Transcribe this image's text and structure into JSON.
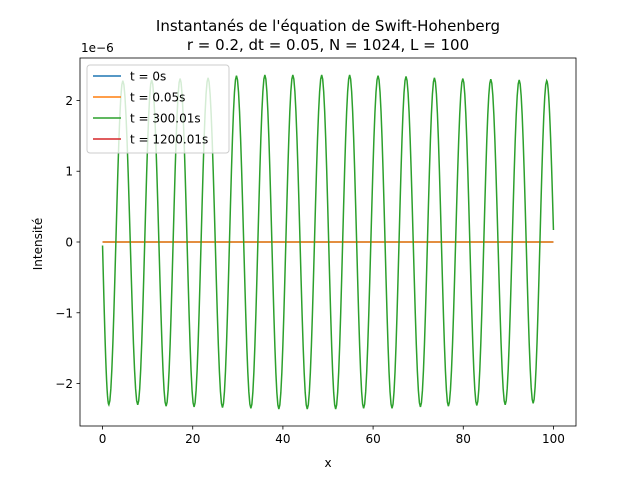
{
  "chart_data": {
    "type": "line",
    "title": "Instantanés de l'équation de Swift-Hohenberg",
    "subtitle": "r = 0.2, dt = 0.05, N = 1024, L = 100",
    "xlabel": "x",
    "ylabel": "Intensité",
    "y_offset_label": "1e−6",
    "y_scale": 1e-06,
    "xlim": [
      -5,
      105
    ],
    "ylim": [
      -2.6e-06,
      2.6e-06
    ],
    "x_ticks": [
      0,
      20,
      40,
      60,
      80,
      100
    ],
    "x_tick_labels": [
      "0",
      "20",
      "40",
      "60",
      "80",
      "100"
    ],
    "y_ticks": [
      -2e-06,
      -1e-06,
      0,
      1e-06,
      2e-06
    ],
    "y_tick_labels": [
      "−2",
      "−1",
      "0",
      "1",
      "2"
    ],
    "grid": false,
    "legend_position": "top-left",
    "series": [
      {
        "name": "t = 0s",
        "color": "#1f77b4",
        "kind": "constant",
        "value": 0
      },
      {
        "name": "t = 0.05s",
        "color": "#ff7f0e",
        "kind": "constant",
        "value": 0
      },
      {
        "name": "t = 300.01s",
        "color": "#2ca02c",
        "kind": "sinusoid",
        "x_range": [
          0,
          100
        ],
        "period": 6.2,
        "phase_start": -0.0,
        "start_value": -5e-08,
        "end_value": 1.7e-07,
        "extrema": [
          [
            1.4,
            -2.3e-06
          ],
          [
            4.5,
            2.28e-06
          ],
          [
            7.8,
            -2.3e-06
          ],
          [
            10.9,
            2.29e-06
          ],
          [
            14.1,
            -2.32e-06
          ],
          [
            17.2,
            2.31e-06
          ],
          [
            20.3,
            -2.33e-06
          ],
          [
            23.4,
            2.32e-06
          ],
          [
            26.6,
            -2.34e-06
          ],
          [
            29.7,
            2.35e-06
          ],
          [
            32.9,
            -2.35e-06
          ],
          [
            36.0,
            2.36e-06
          ],
          [
            39.1,
            -2.36e-06
          ],
          [
            42.2,
            2.36e-06
          ],
          [
            45.4,
            -2.36e-06
          ],
          [
            48.6,
            2.36e-06
          ],
          [
            51.7,
            -2.36e-06
          ],
          [
            54.8,
            2.36e-06
          ],
          [
            57.9,
            -2.35e-06
          ],
          [
            61.1,
            2.35e-06
          ],
          [
            64.2,
            -2.35e-06
          ],
          [
            67.3,
            2.34e-06
          ],
          [
            70.5,
            -2.33e-06
          ],
          [
            73.6,
            2.32e-06
          ],
          [
            76.7,
            -2.32e-06
          ],
          [
            79.9,
            2.31e-06
          ],
          [
            83.0,
            -2.31e-06
          ],
          [
            86.1,
            2.3e-06
          ],
          [
            89.3,
            -2.3e-06
          ],
          [
            92.4,
            2.29e-06
          ],
          [
            95.5,
            -2.28e-06
          ],
          [
            98.5,
            2.28e-06
          ]
        ]
      },
      {
        "name": "t = 1200.01s",
        "color": "#d62728",
        "kind": "hidden"
      }
    ]
  }
}
